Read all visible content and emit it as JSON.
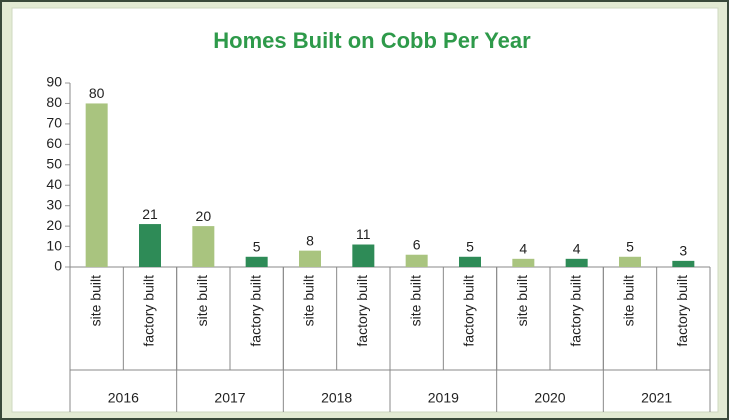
{
  "chart_data": {
    "type": "bar",
    "title": "Homes Built on Cobb Per Year",
    "categories": [
      "2016",
      "2017",
      "2018",
      "2019",
      "2020",
      "2021"
    ],
    "series": [
      {
        "name": "site built",
        "color": "#a9c47f",
        "values": [
          80,
          20,
          8,
          6,
          4,
          5
        ]
      },
      {
        "name": "factory built",
        "color": "#2e8b57",
        "values": [
          21,
          5,
          11,
          5,
          4,
          3
        ]
      }
    ],
    "ylim": [
      0,
      90
    ],
    "yticks": [
      0,
      10,
      20,
      30,
      40,
      50,
      60,
      70,
      80,
      90
    ]
  }
}
